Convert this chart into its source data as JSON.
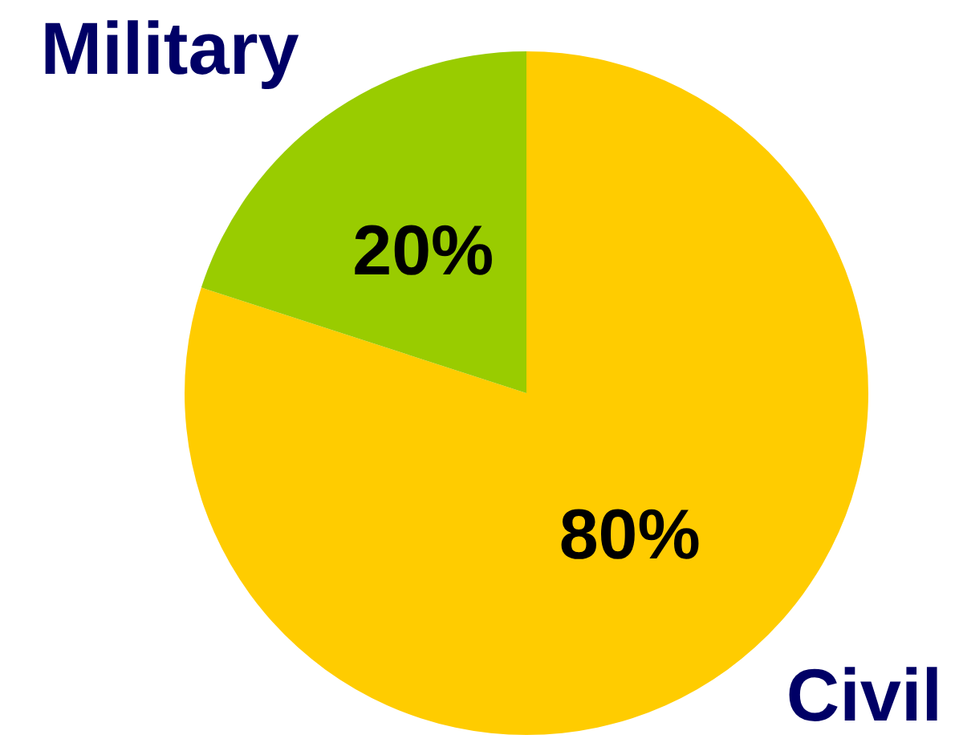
{
  "chart_data": {
    "type": "pie",
    "categories": [
      "Civil",
      "Military"
    ],
    "values": [
      80,
      20
    ],
    "colors": [
      "#ffcc00",
      "#99cc00"
    ],
    "value_labels": [
      "80%",
      "20%"
    ],
    "legend": false
  }
}
